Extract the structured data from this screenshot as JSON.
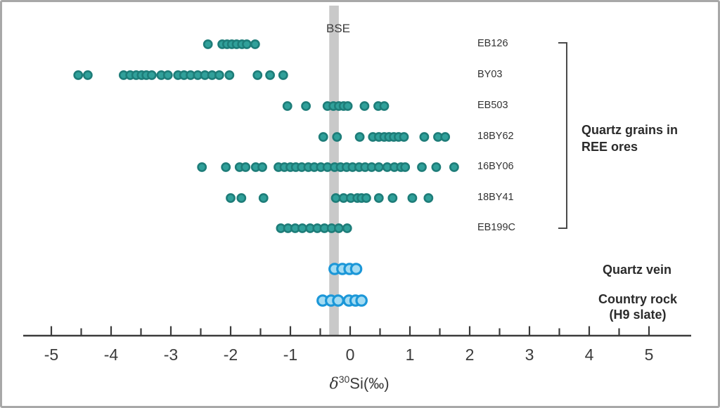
{
  "figure": {
    "background": "#ffffff",
    "border_color": "#a8a8a8"
  },
  "chart_data": {
    "type": "scatter",
    "orientation": "horizontal-strip",
    "xlabel": "δ30Si(‰)",
    "xlabel_parts": {
      "delta": "δ",
      "sup": "30",
      "rest": "Si(‰)"
    },
    "xlim": [
      -5.6,
      5.7
    ],
    "x_major_ticks": [
      -5,
      -4,
      -3,
      -2,
      -1,
      0,
      1,
      2,
      3,
      4,
      5
    ],
    "x_minor_step": 0.5,
    "grid": false,
    "axis_color": "#3b3b3b",
    "reference_band": {
      "label": "BSE",
      "from": -0.35,
      "to": -0.19,
      "color": "#c9c9c9"
    },
    "palette": {
      "ree": {
        "fill": "#30a09a",
        "stroke": "#1e7d79"
      },
      "vein": {
        "fill": "#a3dbf2",
        "stroke": "#1b97d8"
      }
    },
    "series": [
      {
        "name": "EB126",
        "group": "ree",
        "values": [
          -2.38,
          -2.14,
          -2.06,
          -1.98,
          -1.9,
          -1.81,
          -1.73,
          -1.59
        ]
      },
      {
        "name": "BY03",
        "group": "ree",
        "values": [
          -4.55,
          -4.39,
          -3.79,
          -3.68,
          -3.58,
          -3.49,
          -3.41,
          -3.32,
          -3.16,
          -3.05,
          -2.88,
          -2.78,
          -2.67,
          -2.55,
          -2.43,
          -2.31,
          -2.19,
          -2.02,
          -1.55,
          -1.34,
          -1.12
        ]
      },
      {
        "name": "EB503",
        "group": "ree",
        "values": [
          -1.05,
          -0.74,
          -0.38,
          -0.28,
          -0.19,
          -0.11,
          -0.04,
          0.24,
          0.47,
          0.57
        ]
      },
      {
        "name": "18BY62",
        "group": "ree",
        "values": [
          -0.45,
          -0.22,
          0.16,
          0.38,
          0.48,
          0.57,
          0.65,
          0.73,
          0.81,
          0.9,
          1.24,
          1.47,
          1.59
        ]
      },
      {
        "name": "16BY06",
        "group": "ree",
        "values": [
          -2.48,
          -2.08,
          -1.85,
          -1.75,
          -1.58,
          -1.47,
          -1.2,
          -1.1,
          -1.0,
          -0.91,
          -0.81,
          -0.7,
          -0.6,
          -0.49,
          -0.38,
          -0.26,
          -0.16,
          -0.06,
          0.04,
          0.15,
          0.25,
          0.36,
          0.48,
          0.62,
          0.74,
          0.85,
          0.92,
          1.2,
          1.44,
          1.74
        ]
      },
      {
        "name": "18BY41",
        "group": "ree",
        "values": [
          -2.0,
          -1.82,
          -1.45,
          -0.24,
          -0.11,
          0.01,
          0.12,
          0.19,
          0.27,
          0.48,
          0.71,
          1.04,
          1.31
        ]
      },
      {
        "name": "EB199C",
        "group": "ree",
        "values": [
          -1.16,
          -1.04,
          -0.92,
          -0.8,
          -0.67,
          -0.55,
          -0.43,
          -0.31,
          -0.19,
          -0.05
        ]
      },
      {
        "name": "Quartz vein",
        "group": "vein",
        "values": [
          -0.26,
          -0.13,
          -0.01,
          0.1
        ]
      },
      {
        "name": "Country rock (H9 slate)",
        "group": "vein",
        "values": [
          -0.46,
          -0.32,
          -0.2,
          -0.02,
          0.09,
          0.19
        ]
      }
    ],
    "series_group_bracket": {
      "label": "Quartz grains in REE ores",
      "covers_series": [
        "EB126",
        "BY03",
        "EB503",
        "18BY62",
        "16BY06",
        "18BY41",
        "EB199C"
      ]
    },
    "legend_position": "right-margin"
  },
  "annotations": {
    "bse_label": "BSE",
    "group_label_line1": "Quartz grains in",
    "group_label_line2": "REE ores",
    "vein_label": "Quartz vein",
    "country_label_line1": "Country rock",
    "country_label_line2": "(H9 slate)"
  }
}
